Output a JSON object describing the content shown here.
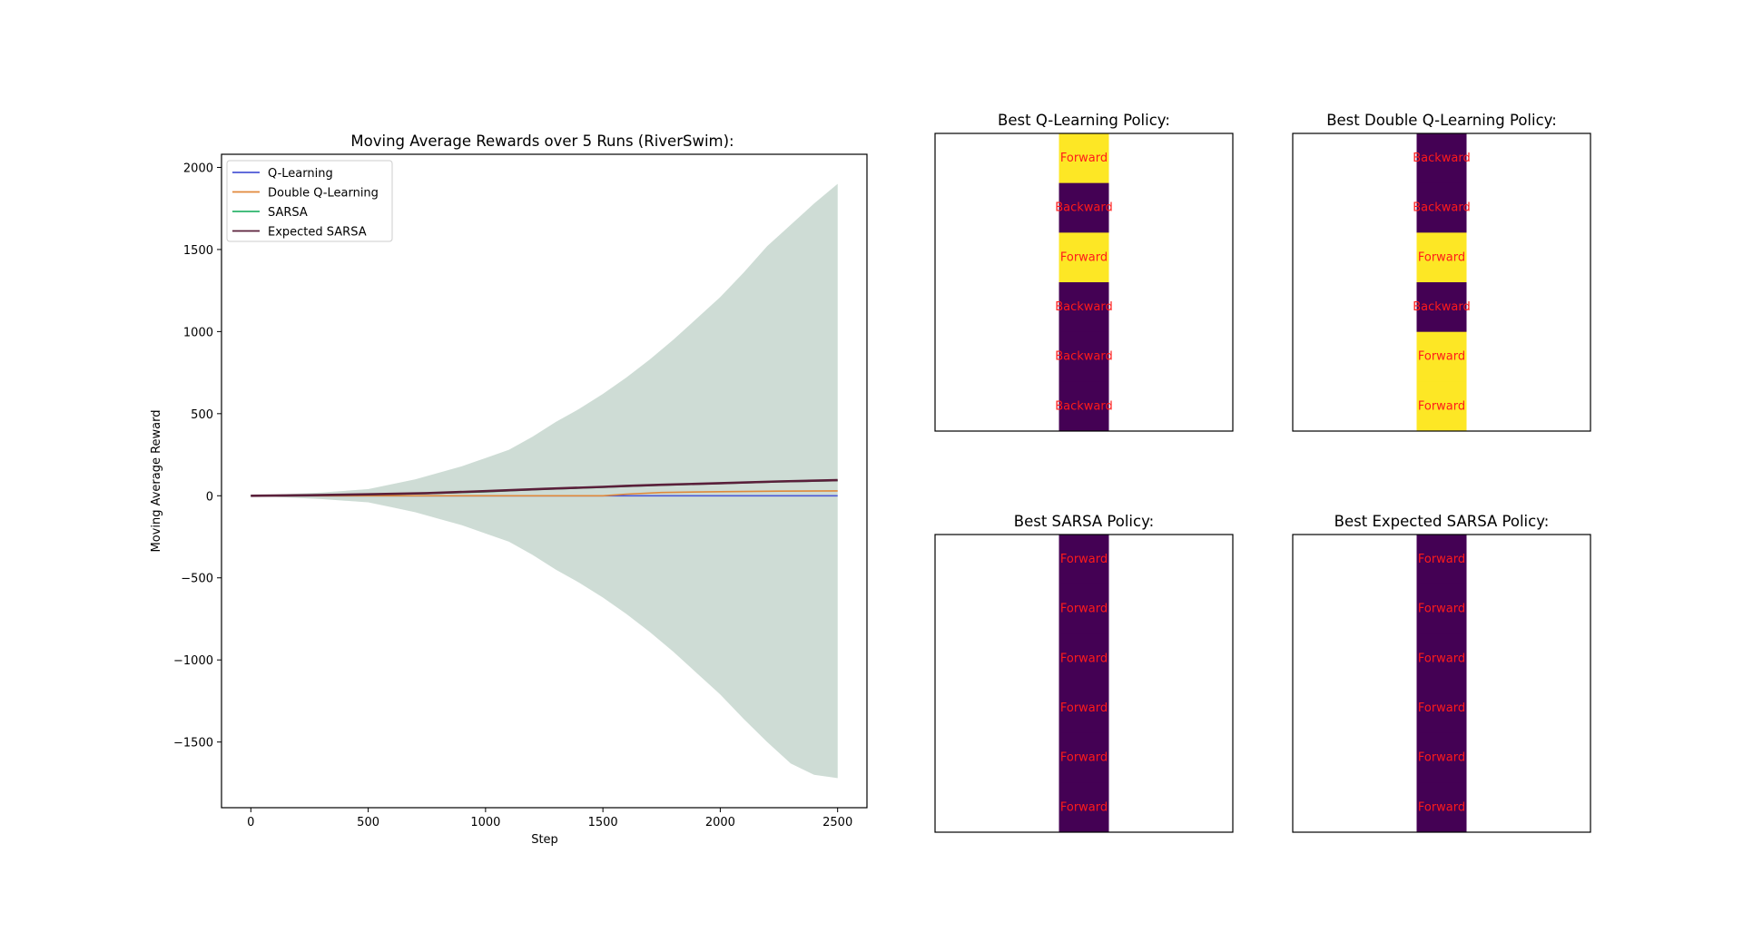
{
  "figure": {
    "background": "#ffffff"
  },
  "colors": {
    "q_learning": "#4c57d6",
    "double_q_learning": "#e0893a",
    "sarsa": "#2bb56b",
    "expected_sarsa": "#5a1f3a",
    "forward_cell": "#fde725",
    "backward_cell": "#440154",
    "policy_text": "#ff1a1a"
  },
  "chart_data": [
    {
      "type": "line",
      "title": "Moving Average Rewards over 5 Runs (RiverSwim):",
      "xlabel": "Step",
      "ylabel": "Moving Average Reward",
      "xlim": [
        -125,
        2625
      ],
      "ylim": [
        -1900,
        2080
      ],
      "xticks": [
        0,
        500,
        1000,
        1500,
        2000,
        2500
      ],
      "yticks": [
        -1500,
        -1000,
        -500,
        0,
        500,
        1000,
        1500,
        2000
      ],
      "xtick_labels": [
        "0",
        "500",
        "1000",
        "1500",
        "2000",
        "2500"
      ],
      "ytick_labels": [
        "−1500",
        "−1000",
        "−500",
        "0",
        "500",
        "1000",
        "1500",
        "2000"
      ],
      "grid": false,
      "legend_position": "top-left",
      "legend": [
        "Q-Learning",
        "Double Q-Learning",
        "SARSA",
        "Expected SARSA"
      ],
      "x": [
        0,
        250,
        500,
        750,
        1000,
        1250,
        1500,
        1600,
        1750,
        2000,
        2250,
        2500
      ],
      "series": [
        {
          "name": "Q-Learning",
          "color_key": "q_learning",
          "values": [
            0,
            0,
            0,
            0,
            0,
            0,
            0,
            0,
            0,
            0,
            0,
            0
          ]
        },
        {
          "name": "Double Q-Learning",
          "color_key": "double_q_learning",
          "values": [
            0,
            0,
            0,
            0,
            0,
            0,
            0,
            10,
            20,
            25,
            28,
            30
          ]
        },
        {
          "name": "SARSA",
          "color_key": "sarsa",
          "values": [
            0,
            3,
            8,
            14,
            25,
            40,
            52,
            58,
            65,
            75,
            85,
            93
          ]
        },
        {
          "name": "Expected SARSA",
          "color_key": "expected_sarsa",
          "values": [
            0,
            3,
            9,
            16,
            28,
            42,
            54,
            60,
            67,
            77,
            87,
            95
          ]
        }
      ],
      "band": {
        "x": [
          0,
          300,
          500,
          600,
          700,
          800,
          900,
          1000,
          1100,
          1200,
          1300,
          1400,
          1500,
          1600,
          1700,
          1800,
          1900,
          2000,
          2100,
          2200,
          2300,
          2400,
          2500
        ],
        "upper": [
          0,
          20,
          40,
          70,
          100,
          140,
          180,
          230,
          280,
          360,
          450,
          530,
          620,
          720,
          830,
          950,
          1080,
          1210,
          1360,
          1520,
          1650,
          1780,
          1900
        ],
        "lower": [
          0,
          -20,
          -40,
          -70,
          -100,
          -140,
          -180,
          -230,
          -280,
          -360,
          -450,
          -530,
          -620,
          -720,
          -830,
          -950,
          -1080,
          -1210,
          -1360,
          -1500,
          -1630,
          -1700,
          -1720
        ]
      }
    },
    {
      "type": "heatmap",
      "title": "Best Q-Learning Policy:",
      "cells": [
        "Forward",
        "Backward",
        "Forward",
        "Backward",
        "Backward",
        "Backward"
      ]
    },
    {
      "type": "heatmap",
      "title": "Best Double Q-Learning Policy:",
      "cells": [
        "Backward",
        "Backward",
        "Forward",
        "Backward",
        "Forward",
        "Forward"
      ]
    },
    {
      "type": "heatmap",
      "title": "Best SARSA Policy:",
      "cells": [
        "Forward",
        "Forward",
        "Forward",
        "Forward",
        "Forward",
        "Forward"
      ],
      "uniform_color_key": "backward_cell"
    },
    {
      "type": "heatmap",
      "title": "Best Expected SARSA Policy:",
      "cells": [
        "Forward",
        "Forward",
        "Forward",
        "Forward",
        "Forward",
        "Forward"
      ],
      "uniform_color_key": "backward_cell"
    }
  ]
}
